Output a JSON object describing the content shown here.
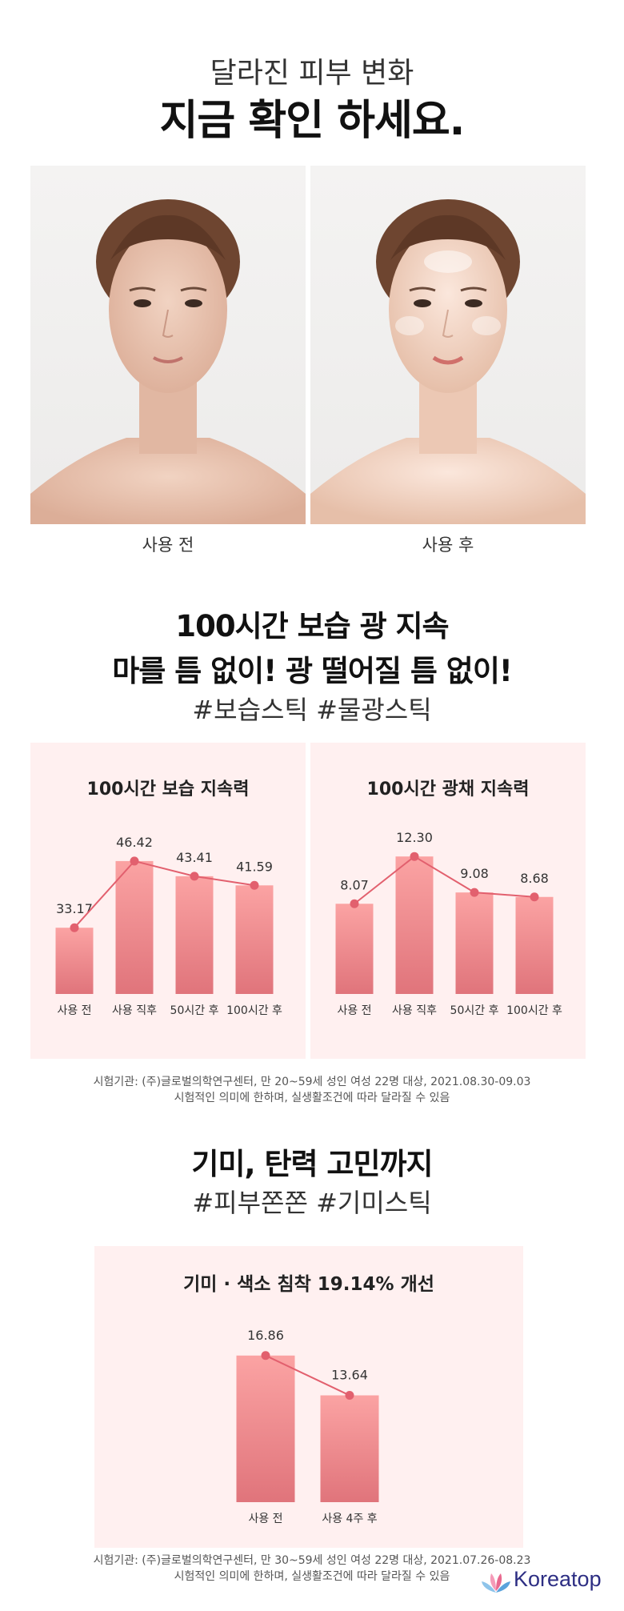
{
  "hero": {
    "subtitle": "달라진 피부 변화",
    "title": "지금 확인 하세요."
  },
  "photos": {
    "before_label": "사용 전",
    "after_label": "사용 후"
  },
  "section1": {
    "line1": "100시간 보습 광 지속",
    "line2": "마를 틈 없이! 광 떨어질 틈 없이!",
    "tags": "#보습스틱 #물광스틱"
  },
  "section2": {
    "line1": "기미, 탄력 고민까지",
    "tags": "#피부쫀쫀 #기미스틱"
  },
  "notes": {
    "note1_line1": "시험기관: (주)글로벌의학연구센터, 만 20~59세 성인 여성 22명 대상, 2021.08.30-09.03",
    "note1_line2": "시험적인 의미에 한하며, 실생활조건에 따라 달라질 수 있음",
    "note2_line1": "시험기관: (주)글로벌의학연구센터, 만 30~59세 성인 여성 22명 대상, 2021.07.26-08.23",
    "note2_line2": "시험적인 의미에 한하며, 실생활조건에 따라 달라질 수 있음"
  },
  "logo": {
    "text": "Koreatop"
  },
  "colors": {
    "bar_top": "#fba3a3",
    "bar_bottom": "#e0747b",
    "line": "#e2606e",
    "panel_bg": "#fff0f0"
  },
  "chart_data": [
    {
      "type": "bar",
      "title": "100시간 보습 지속력",
      "categories": [
        "사용 전",
        "사용 직후",
        "50시간 후",
        "100시간 후"
      ],
      "values": [
        33.17,
        46.42,
        43.41,
        41.59
      ],
      "value_labels": [
        "33.17",
        "46.42",
        "43.41",
        "41.59"
      ],
      "overlay_line": true,
      "ylim": [
        20,
        48
      ]
    },
    {
      "type": "bar",
      "title": "100시간 광채 지속력",
      "categories": [
        "사용 전",
        "사용 직후",
        "50시간 후",
        "100시간 후"
      ],
      "values": [
        8.07,
        12.3,
        9.08,
        8.68
      ],
      "value_labels": [
        "8.07",
        "12.30",
        "9.08",
        "8.68"
      ],
      "overlay_line": true,
      "ylim": [
        0,
        12.6
      ]
    },
    {
      "type": "bar",
      "title": "기미 · 색소 침착 19.14% 개선",
      "categories": [
        "사용 전",
        "사용 4주 후"
      ],
      "values": [
        16.86,
        13.64
      ],
      "value_labels": [
        "16.86",
        "13.64"
      ],
      "overlay_line": true,
      "ylim": [
        5,
        17.3
      ]
    }
  ]
}
